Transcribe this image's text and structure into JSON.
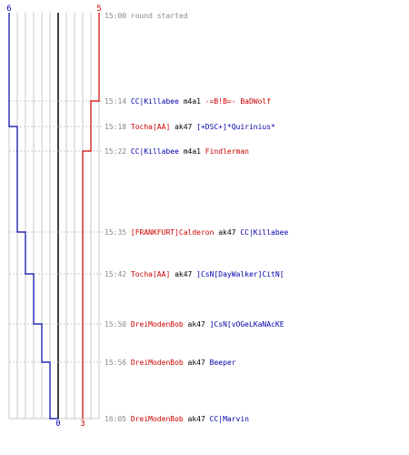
{
  "colors": {
    "team_blue": "#0000aa",
    "team_red": "#cc0000",
    "weapon": "#000000",
    "time": "#888888",
    "grid": "#c8c8c8"
  },
  "start_scores": {
    "blue": "6",
    "red": "5"
  },
  "end_scores": {
    "blue": "0",
    "red": "3"
  },
  "events": [
    {
      "time": "15:00",
      "note": "round started"
    },
    {
      "time": "15:14",
      "killer": "CC|Killabee",
      "killer_team": "blue",
      "weapon": "m4a1",
      "victim": "-=B!B=- BaDWolf",
      "victim_team": "red"
    },
    {
      "time": "15:18",
      "killer": "Tocha[AA]",
      "killer_team": "red",
      "weapon": "ak47",
      "victim": "[+DSC+]*Quirinius*",
      "victim_team": "blue"
    },
    {
      "time": "15:22",
      "killer": "CC|Killabee",
      "killer_team": "blue",
      "weapon": "m4a1",
      "victim": "Findlerman",
      "victim_team": "red"
    },
    {
      "time": "15:35",
      "killer": "[FRANKFURT]Calderon",
      "killer_team": "red",
      "weapon": "ak47",
      "victim": "CC|Killabee",
      "victim_team": "blue"
    },
    {
      "time": "15:42",
      "killer": "Tocha[AA]",
      "killer_team": "red",
      "weapon": "ak47",
      "victim": "]CsN[DayWalker]CitN[",
      "victim_team": "blue"
    },
    {
      "time": "15:50",
      "killer": "DreiModenBob",
      "killer_team": "red",
      "weapon": "ak47",
      "victim": "]CsN[vOGeLKaNAcKE",
      "victim_team": "blue"
    },
    {
      "time": "15:56",
      "killer": "DreiModenBob",
      "killer_team": "red",
      "weapon": "ak47",
      "victim": "Beeper",
      "victim_team": "blue"
    },
    {
      "time": "16:05",
      "killer": "DreiModenBob",
      "killer_team": "red",
      "weapon": "ak47",
      "victim": "CC|Marvin",
      "victim_team": "blue"
    }
  ]
}
